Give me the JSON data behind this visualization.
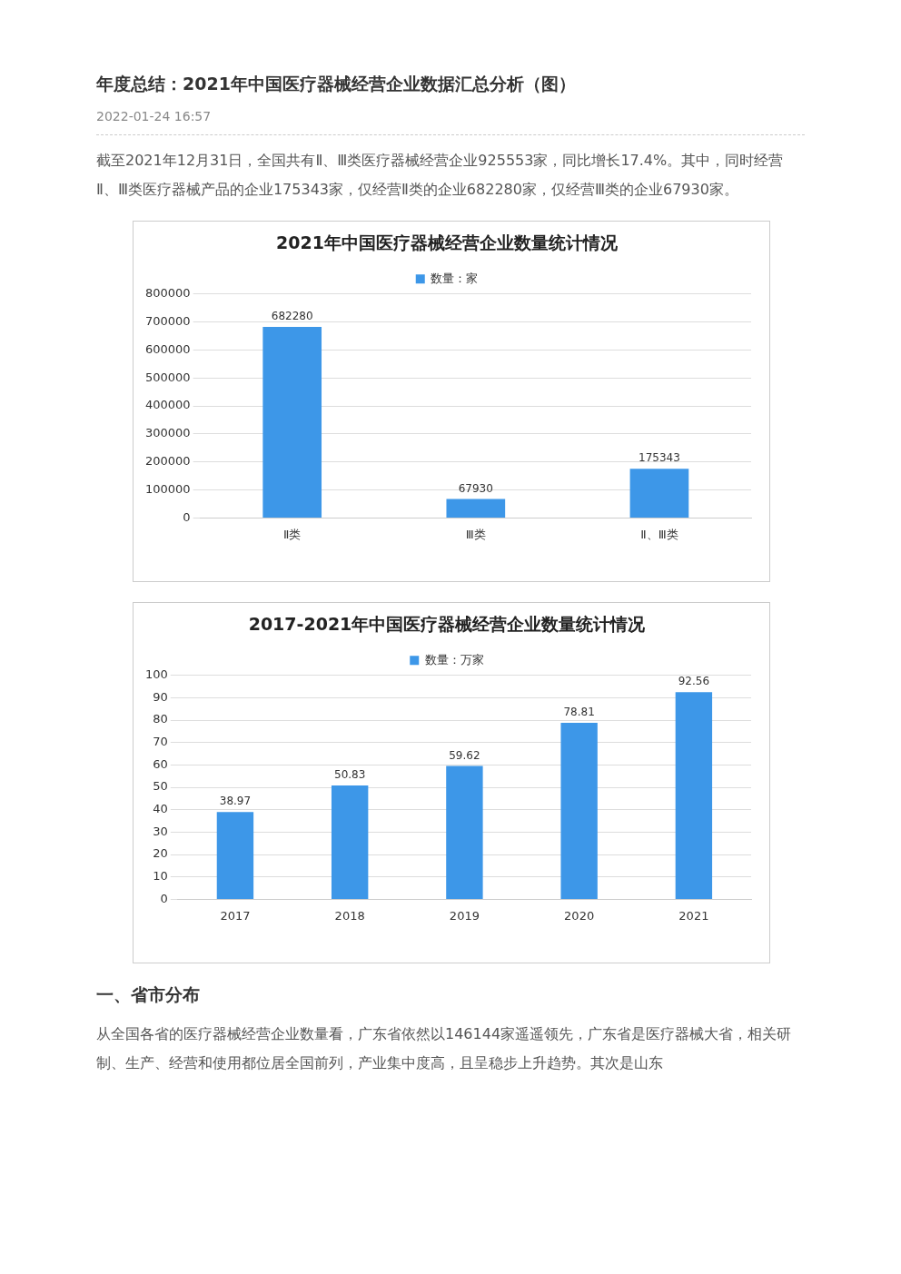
{
  "chart_data": [
    {
      "type": "other",
      "title": "年度总结：2021年中国医疗器械经营企业数据汇总分析（图）",
      "subtitle": "2022-01-24 16:57",
      "annotations": [
        "截至2021年12月31日，全国共有Ⅱ、Ⅲ类医疗器械经营企业925553家，同比增长17.4%。其中，同时经营Ⅱ、Ⅲ类医疗器械产品的企业175343家，仅经营Ⅱ类的企业682280家，仅经营Ⅲ类的企业67930家。"
      ]
    },
    {
      "type": "bar",
      "title": "2021年中国医疗器械经营企业数量统计情况",
      "categories": [
        "Ⅱ类",
        "Ⅲ类",
        "Ⅱ、Ⅲ类"
      ],
      "series": [
        {
          "name": "数量：家",
          "color": "#3d97e8",
          "values": [
            682280,
            67930,
            175343
          ]
        }
      ],
      "ylim": [
        0,
        800000
      ],
      "yticks": [
        0,
        100000,
        200000,
        300000,
        400000,
        500000,
        600000,
        700000,
        800000
      ],
      "grid": "y",
      "legend": "top",
      "data_labels": true
    },
    {
      "type": "bar",
      "title": "2017-2021年中国医疗器械经营企业数量统计情况",
      "categories": [
        "2017",
        "2018",
        "2019",
        "2020",
        "2021"
      ],
      "series": [
        {
          "name": "数量：万家",
          "color": "#3d97e8",
          "values": [
            38.97,
            50.83,
            59.62,
            78.81,
            92.56
          ]
        }
      ],
      "ylim": [
        0,
        100
      ],
      "yticks": [
        0,
        10,
        20,
        30,
        40,
        50,
        60,
        70,
        80,
        90,
        100
      ],
      "grid": "y",
      "legend": "top",
      "data_labels": true
    },
    {
      "type": "other",
      "title": "一、省市分布",
      "annotations": [
        "从全国各省的医疗器械经营企业数量看，广东省依然以146144家遥遥领先，广东省是医疗器械大省，相关研制、生产、经营和使用都位居全国前列，产业集中度高，且呈稳步上升趋势。其次是山东"
      ]
    }
  ]
}
